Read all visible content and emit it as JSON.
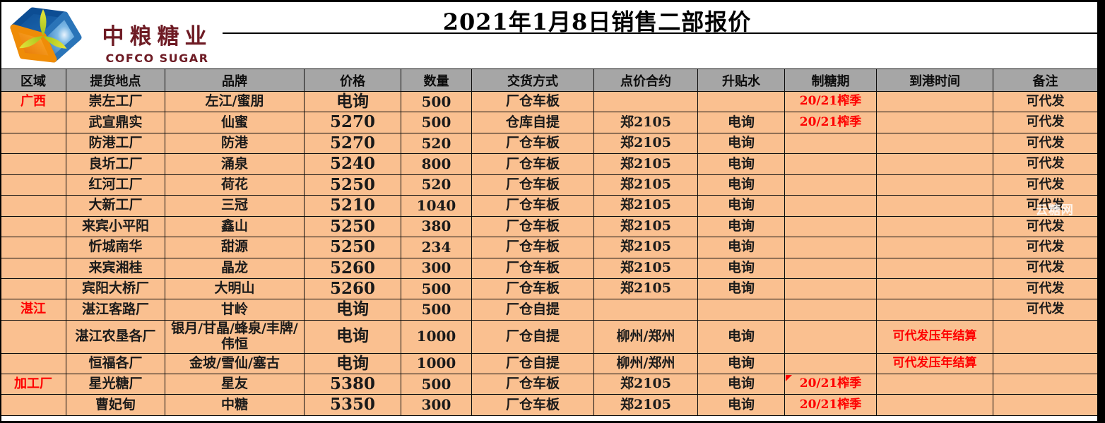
{
  "logo": {
    "cn": "中粮糖业",
    "en": "COFCO SUGAR"
  },
  "title": "2021年1月8日销售二部报价",
  "watermark": "云糖网",
  "colors": {
    "row_background": "#FAC090",
    "header_background": "#A6A6A6",
    "accent_red": "#FE0000",
    "brand_maroon": "#6E1B24"
  },
  "table": {
    "headers": [
      "区域",
      "提货地点",
      "品牌",
      "价格",
      "数量",
      "交货方式",
      "点价合约",
      "升贴水",
      "制糖期",
      "到港时间",
      "备注"
    ],
    "columns": [
      "region",
      "pickup",
      "brand",
      "price",
      "qty",
      "delivery",
      "contract",
      "premium",
      "period",
      "arrival",
      "note"
    ],
    "rows": [
      {
        "region": "广西",
        "region_red": true,
        "pickup": "崇左工厂",
        "brand": "左江/蜜朋",
        "price": "电询",
        "qty": "500",
        "delivery": "厂仓车板",
        "contract": "",
        "premium": "",
        "period": "20/21榨季",
        "period_red": true,
        "arrival": "",
        "note": "可代发"
      },
      {
        "region": "",
        "pickup": "武宣鼎实",
        "brand": "仙蜜",
        "price": "5270",
        "qty": "500",
        "delivery": "仓库自提",
        "contract": "郑2105",
        "premium": "电询",
        "period": "20/21榨季",
        "period_red": true,
        "arrival": "",
        "note": "可代发"
      },
      {
        "region": "",
        "pickup": "防港工厂",
        "brand": "防港",
        "price": "5270",
        "qty": "520",
        "delivery": "厂仓车板",
        "contract": "郑2105",
        "premium": "电询",
        "period": "",
        "arrival": "",
        "note": "可代发"
      },
      {
        "region": "",
        "pickup": "良圻工厂",
        "brand": "涌泉",
        "price": "5240",
        "qty": "800",
        "delivery": "厂仓车板",
        "contract": "郑2105",
        "premium": "电询",
        "period": "",
        "arrival": "",
        "note": "可代发"
      },
      {
        "region": "",
        "pickup": "红河工厂",
        "brand": "荷花",
        "price": "5250",
        "qty": "520",
        "delivery": "厂仓车板",
        "contract": "郑2105",
        "premium": "电询",
        "period": "",
        "arrival": "",
        "note": "可代发"
      },
      {
        "region": "",
        "pickup": "大新工厂",
        "brand": "三冠",
        "price": "5210",
        "qty": "1040",
        "delivery": "厂仓车板",
        "contract": "郑2105",
        "premium": "电询",
        "period": "",
        "arrival": "",
        "note": "可代发"
      },
      {
        "region": "",
        "pickup": "来宾小平阳",
        "brand": "鑫山",
        "price": "5250",
        "qty": "380",
        "delivery": "厂仓车板",
        "contract": "郑2105",
        "premium": "电询",
        "period": "",
        "arrival": "",
        "note": "可代发"
      },
      {
        "region": "",
        "pickup": "忻城南华",
        "brand": "甜源",
        "price": "5250",
        "qty": "234",
        "delivery": "厂仓车板",
        "contract": "郑2105",
        "premium": "电询",
        "period": "",
        "arrival": "",
        "note": "可代发"
      },
      {
        "region": "",
        "pickup": "来宾湘桂",
        "brand": "晶龙",
        "price": "5260",
        "qty": "300",
        "delivery": "厂仓车板",
        "contract": "郑2105",
        "premium": "电询",
        "period": "",
        "arrival": "",
        "note": "可代发"
      },
      {
        "region": "",
        "pickup": "宾阳大桥厂",
        "brand": "大明山",
        "price": "5260",
        "qty": "500",
        "delivery": "厂仓车板",
        "contract": "郑2105",
        "premium": "电询",
        "period": "",
        "arrival": "",
        "note": "可代发"
      },
      {
        "region": "湛江",
        "region_red": true,
        "pickup": "湛江客路厂",
        "brand": "甘岭",
        "price": "电询",
        "qty": "500",
        "delivery": "厂仓自提",
        "contract": "",
        "premium": "",
        "period": "",
        "arrival": "",
        "note": "可代发"
      },
      {
        "region": "",
        "pickup": "湛江农垦各厂",
        "brand": "银月/甘晶/蜂泉/丰牌/伟恒",
        "price": "电询",
        "qty": "1000",
        "delivery": "厂仓自提",
        "contract": "柳州/郑州",
        "premium": "电询",
        "period": "",
        "arrival": "可代发压年结算",
        "arrival_red": true,
        "note": ""
      },
      {
        "region": "",
        "pickup": "恒福各厂",
        "brand": "金坡/雪仙/塞古",
        "price": "电询",
        "qty": "1000",
        "delivery": "厂仓自提",
        "contract": "柳州/郑州",
        "premium": "电询",
        "period": "",
        "arrival": "可代发压年结算",
        "arrival_red": true,
        "note": ""
      },
      {
        "region": "加工厂",
        "region_red": true,
        "pickup": "星光糖厂",
        "brand": "星友",
        "price": "5380",
        "qty": "500",
        "delivery": "厂仓车板",
        "contract": "郑2105",
        "premium": "电询",
        "period": "20/21榨季",
        "period_red": true,
        "period_flag": true,
        "arrival": "",
        "note": ""
      },
      {
        "region": "",
        "pickup": "曹妃甸",
        "brand": "中糖",
        "price": "5350",
        "qty": "300",
        "delivery": "厂仓车板",
        "contract": "郑2105",
        "premium": "电询",
        "period": "20/21榨季",
        "period_red": true,
        "arrival": "",
        "note": ""
      }
    ]
  }
}
